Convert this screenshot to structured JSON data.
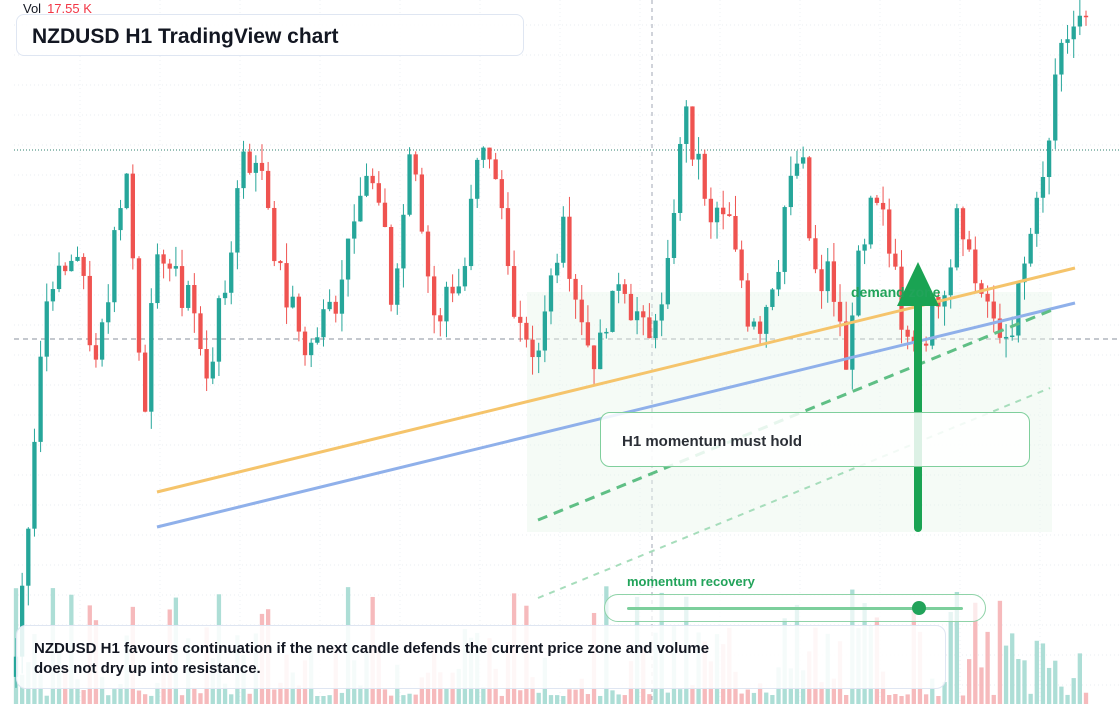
{
  "window": {
    "title": "NZDUSD H1 TradingView chart"
  },
  "legend": {
    "vol_label": "Vol",
    "vol_value": "17.55 K"
  },
  "annotations": {
    "zone_label": "demand zone",
    "callout": "H1 momentum must hold",
    "momentum_label": "momentum recovery",
    "momentum_level": 0.87,
    "summary": "NZDUSD H1 favours continuation if the next candle defends the current price zone and volume does not dry up into resistance."
  },
  "colors": {
    "up": "#26a69a",
    "down": "#ef5350",
    "trendline_upper": "#f5c46b",
    "trendline_lower": "#8fb0ea",
    "accent": "#22a35a"
  },
  "chart_data": {
    "type": "candlestick",
    "symbol": "NZDUSD",
    "timeframe": "H1",
    "price_scale": "relative (no axis labels visible)",
    "candle_count": 175,
    "candles_close_path": [
      0.05,
      0.2,
      0.38,
      0.55,
      0.62,
      0.6,
      0.64,
      0.66,
      0.5,
      0.52,
      0.58,
      0.7,
      0.78,
      0.6,
      0.42,
      0.58,
      0.66,
      0.62,
      0.58,
      0.61,
      0.5,
      0.47,
      0.54,
      0.6,
      0.72,
      0.82,
      0.76,
      0.78,
      0.68,
      0.6,
      0.57,
      0.53,
      0.5,
      0.53,
      0.56,
      0.58,
      0.65,
      0.72,
      0.78,
      0.74,
      0.7,
      0.58,
      0.65,
      0.8,
      0.72,
      0.62,
      0.55,
      0.58,
      0.62,
      0.6,
      0.74,
      0.78,
      0.76,
      0.72,
      0.6,
      0.56,
      0.52,
      0.5,
      0.56,
      0.64,
      0.68,
      0.6,
      0.53,
      0.5,
      0.5,
      0.56,
      0.6,
      0.58,
      0.54,
      0.52,
      0.58,
      0.6,
      0.7,
      0.86,
      0.8,
      0.76,
      0.72,
      0.75,
      0.7,
      0.6,
      0.56,
      0.54,
      0.58,
      0.6,
      0.72,
      0.8,
      0.78,
      0.66,
      0.62,
      0.63,
      0.56,
      0.48,
      0.65,
      0.7,
      0.73,
      0.69,
      0.62,
      0.5,
      0.53,
      0.52,
      0.55,
      0.6,
      0.62,
      0.74,
      0.66,
      0.6,
      0.59,
      0.52,
      0.52,
      0.55,
      0.6,
      0.68,
      0.72,
      0.82,
      0.92,
      0.97,
      0.99,
      0.98
    ]
  }
}
